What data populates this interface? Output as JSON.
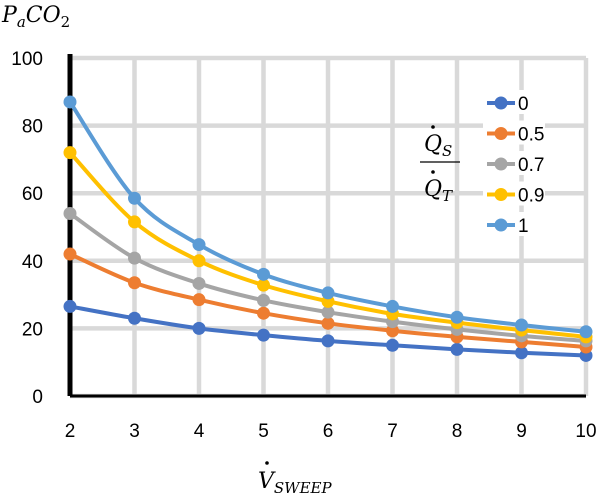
{
  "chart_data": {
    "type": "line",
    "ylabel": {
      "main": "P",
      "sub_a": "a",
      "mid": "CO",
      "sub_2": "2"
    },
    "xlabel": {
      "main": "V",
      "sub": "SWEEP"
    },
    "legend_title": {
      "num": "Q",
      "num_sub": "S",
      "den": "Q",
      "den_sub": "T"
    },
    "legend_position": "right",
    "grid": true,
    "xlim": [
      2,
      10
    ],
    "ylim": [
      0,
      100
    ],
    "x_ticks": [
      "2",
      "3",
      "4",
      "5",
      "6",
      "7",
      "8",
      "9",
      "10"
    ],
    "y_ticks": [
      "0",
      "20",
      "40",
      "60",
      "80",
      "100"
    ],
    "x": [
      2,
      3,
      4,
      5,
      6,
      7,
      8,
      9,
      10
    ],
    "series": [
      {
        "name": "0",
        "color": "#4472C4",
        "values": [
          26.5,
          23,
          20,
          18,
          16.3,
          15,
          13.8,
          12.8,
          12
        ]
      },
      {
        "name": "0.5",
        "color": "#ED7D31",
        "values": [
          42,
          33.5,
          28.5,
          24.5,
          21.5,
          19.3,
          17.5,
          16,
          14.5
        ]
      },
      {
        "name": "0.7",
        "color": "#A5A5A5",
        "values": [
          54,
          40.8,
          33.3,
          28.3,
          24.8,
          22,
          19.7,
          17.8,
          16.3
        ]
      },
      {
        "name": "0.9",
        "color": "#FFC000",
        "values": [
          72,
          51.5,
          40,
          32.8,
          28,
          24.3,
          21.7,
          19.5,
          17.5
        ]
      },
      {
        "name": "1",
        "color": "#5B9BD5",
        "values": [
          87,
          58.5,
          44.8,
          36,
          30.5,
          26.5,
          23.3,
          21,
          19
        ]
      }
    ]
  }
}
